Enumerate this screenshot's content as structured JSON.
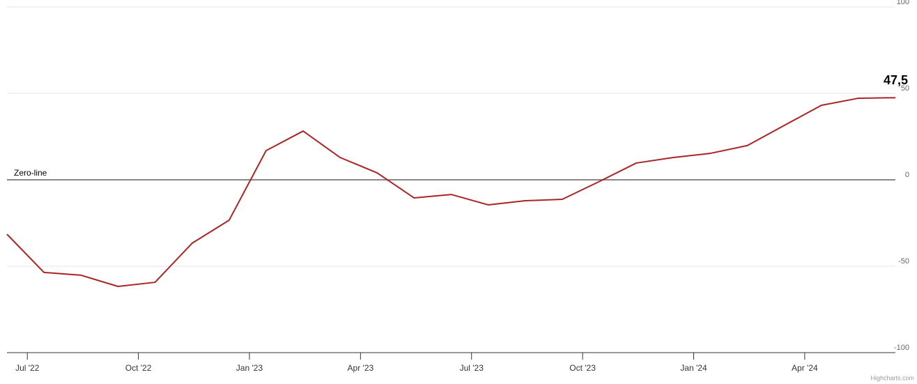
{
  "chart_data": {
    "type": "line",
    "x": [
      "2022-06",
      "2022-07",
      "2022-08",
      "2022-09",
      "2022-10",
      "2022-11",
      "2022-12",
      "2023-01",
      "2023-02",
      "2023-03",
      "2023-04",
      "2023-05",
      "2023-06",
      "2023-07",
      "2023-08",
      "2023-09",
      "2023-10",
      "2023-11",
      "2023-12",
      "2024-01",
      "2024-02",
      "2024-03",
      "2024-04",
      "2024-05",
      "2024-06"
    ],
    "series": [
      {
        "color": "#ab2424",
        "values": [
          -31.5,
          -53.6,
          -55.2,
          -61.7,
          -59.3,
          -36.7,
          -23.4,
          16.9,
          28.2,
          12.9,
          4.0,
          -10.5,
          -8.5,
          -14.5,
          -12.1,
          -11.3,
          -1.0,
          9.7,
          12.9,
          15.3,
          19.8,
          31.5,
          43.1,
          47.2,
          47.5
        ],
        "value_labels": [
          null,
          null,
          null,
          null,
          null,
          null,
          null,
          null,
          null,
          null,
          null,
          null,
          null,
          null,
          null,
          null,
          null,
          null,
          null,
          null,
          null,
          null,
          null,
          null,
          "47,5"
        ]
      }
    ],
    "xticks": [
      {
        "value": "2022-07",
        "label": "Jul '22"
      },
      {
        "value": "2022-10",
        "label": "Oct '22"
      },
      {
        "value": "2023-01",
        "label": "Jan '23"
      },
      {
        "value": "2023-04",
        "label": "Apr '23"
      },
      {
        "value": "2023-07",
        "label": "Jul '23"
      },
      {
        "value": "2023-10",
        "label": "Oct '23"
      },
      {
        "value": "2024-01",
        "label": "Jan '24"
      },
      {
        "value": "2024-04",
        "label": "Apr '24"
      }
    ],
    "ylim": [
      -100,
      100
    ],
    "yticks": [
      -100,
      -50,
      0,
      50,
      100
    ],
    "grid": true,
    "plot_lines": [
      {
        "value": 0,
        "label": "Zero-line",
        "color": "#888888"
      }
    ],
    "credits": "Highcharts.com"
  }
}
